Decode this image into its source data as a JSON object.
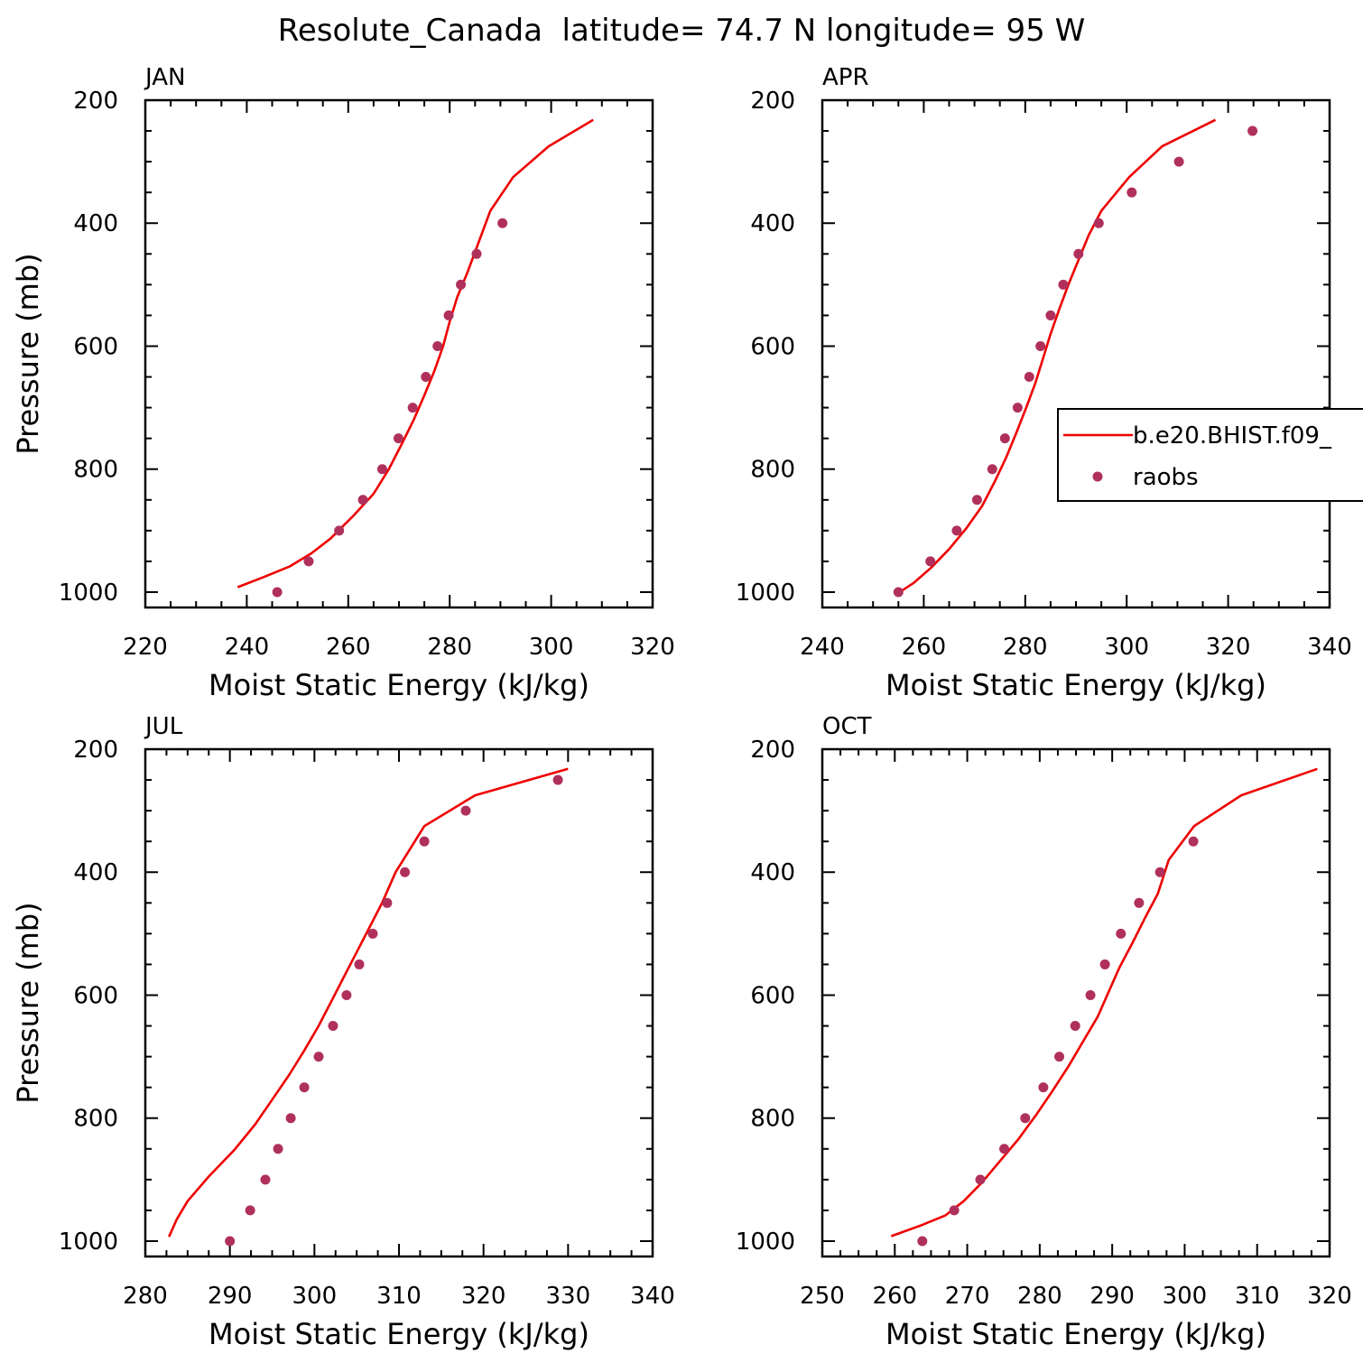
{
  "figure_title": "Resolute_Canada  latitude= 74.7 N longitude= 95 W",
  "legend": {
    "model_label": "b.e20.BHIST.f09_",
    "obs_label": "raobs"
  },
  "colors": {
    "model": "#ee0000",
    "obs": "#b0305c",
    "axes": "#000000"
  },
  "chart_data": [
    {
      "type": "line",
      "panel": "JAN",
      "xlabel": "Moist Static Energy (kJ/kg)",
      "ylabel": "Pressure (mb)",
      "xlim": [
        220,
        320
      ],
      "xticks": [
        220,
        240,
        260,
        280,
        300,
        320
      ],
      "xminor": 5,
      "ylim": [
        1025,
        200
      ],
      "yticks": [
        200,
        400,
        600,
        800,
        1000
      ],
      "yminor": 50,
      "series": [
        {
          "name": "b.e20.BHIST.f09_",
          "style": "line",
          "x": [
            238.2,
            243.5,
            248.5,
            252.7,
            256.5,
            261,
            265,
            268,
            270.5,
            272.9,
            275,
            277,
            278.7,
            280,
            281.5,
            283.5,
            285.3,
            288,
            292.5,
            299.5,
            308.3
          ],
          "y": [
            992,
            975,
            958,
            937,
            913,
            876,
            840,
            800,
            760,
            720,
            680,
            640,
            600,
            560,
            520,
            480,
            440,
            380,
            325,
            275,
            232
          ]
        },
        {
          "name": "raobs",
          "style": "markers",
          "x": [
            246,
            252.2,
            258.2,
            262.9,
            266.7,
            269.9,
            272.7,
            275.3,
            277.6,
            279.8,
            282.2,
            285.3,
            290.4
          ],
          "y": [
            1000,
            950,
            900,
            850,
            800,
            750,
            700,
            650,
            600,
            550,
            500,
            450,
            400
          ]
        }
      ]
    },
    {
      "type": "line",
      "panel": "APR",
      "xlabel": "Moist Static Energy (kJ/kg)",
      "ylabel": "Pressure (mb)",
      "xlim": [
        240,
        340
      ],
      "xticks": [
        240,
        260,
        280,
        300,
        320,
        340
      ],
      "xminor": 5,
      "ylim": [
        1025,
        200
      ],
      "yticks": [
        200,
        400,
        600,
        800,
        1000
      ],
      "yminor": 50,
      "series": [
        {
          "name": "b.e20.BHIST.f09_",
          "style": "line",
          "x": [
            254.9,
            258,
            261.5,
            265,
            268.5,
            271.5,
            274,
            276.3,
            278.3,
            280.2,
            282,
            283.5,
            285,
            286.7,
            288.5,
            290.5,
            292.5,
            295,
            300.5,
            307,
            317.5
          ],
          "y": [
            1002,
            985,
            960,
            930,
            895,
            860,
            820,
            780,
            740,
            700,
            660,
            620,
            580,
            540,
            500,
            460,
            420,
            380,
            325,
            275,
            232
          ]
        },
        {
          "name": "raobs",
          "style": "markers",
          "x": [
            255,
            261.3,
            266.5,
            270.5,
            273.5,
            276,
            278.5,
            280.8,
            283,
            285,
            287.5,
            290.5,
            294.5,
            301,
            310.3,
            324.8
          ],
          "y": [
            1000,
            950,
            900,
            850,
            800,
            750,
            700,
            650,
            600,
            550,
            500,
            450,
            400,
            350,
            300,
            250
          ]
        }
      ]
    },
    {
      "type": "line",
      "panel": "JUL",
      "xlabel": "Moist Static Energy (kJ/kg)",
      "ylabel": "Pressure (mb)",
      "xlim": [
        280,
        340
      ],
      "xticks": [
        280,
        290,
        300,
        310,
        320,
        330,
        340
      ],
      "xminor": 2.5,
      "ylim": [
        1025,
        200
      ],
      "yticks": [
        200,
        400,
        600,
        800,
        1000
      ],
      "yminor": 50,
      "series": [
        {
          "name": "b.e20.BHIST.f09_",
          "style": "line",
          "x": [
            282.8,
            283.7,
            285,
            287.5,
            290.5,
            293,
            295,
            297,
            298.8,
            300.5,
            302,
            303.5,
            305,
            306.5,
            308,
            309.6,
            313,
            319,
            330
          ],
          "y": [
            993,
            965,
            935,
            895,
            852,
            810,
            770,
            730,
            690,
            650,
            610,
            570,
            530,
            490,
            450,
            400,
            325,
            275,
            232
          ]
        },
        {
          "name": "raobs",
          "style": "markers",
          "x": [
            290,
            292.4,
            294.2,
            295.7,
            297.2,
            298.8,
            300.5,
            302.2,
            303.8,
            305.3,
            306.9,
            308.6,
            310.7,
            313,
            317.9,
            328.8
          ],
          "y": [
            1000,
            950,
            900,
            850,
            800,
            750,
            700,
            650,
            600,
            550,
            500,
            450,
            400,
            350,
            300,
            250
          ]
        }
      ]
    },
    {
      "type": "line",
      "panel": "OCT",
      "xlabel": "Moist Static Energy (kJ/kg)",
      "ylabel": "Pressure (mb)",
      "xlim": [
        250,
        320
      ],
      "xticks": [
        250,
        260,
        270,
        280,
        290,
        300,
        310,
        320
      ],
      "xminor": 2.5,
      "ylim": [
        1025,
        200
      ],
      "yticks": [
        200,
        400,
        600,
        800,
        1000
      ],
      "yminor": 50,
      "series": [
        {
          "name": "b.e20.BHIST.f09_",
          "style": "line",
          "x": [
            259.5,
            263.5,
            267,
            269.5,
            272,
            274.5,
            277,
            279.5,
            281.8,
            284,
            286,
            288,
            289.5,
            291,
            292.8,
            294.5,
            296.3,
            297.8,
            301.3,
            307.8,
            318.3
          ],
          "y": [
            992,
            975,
            958,
            935,
            905,
            870,
            835,
            795,
            755,
            715,
            675,
            635,
            595,
            555,
            515,
            475,
            435,
            380,
            325,
            275,
            232
          ]
        },
        {
          "name": "raobs",
          "style": "markers",
          "x": [
            263.8,
            268.2,
            271.8,
            275.1,
            278,
            280.5,
            282.7,
            284.9,
            287,
            289,
            291.2,
            293.7,
            296.6,
            301.2
          ],
          "y": [
            1000,
            950,
            900,
            850,
            800,
            750,
            700,
            650,
            600,
            550,
            500,
            450,
            400,
            350
          ]
        }
      ]
    }
  ]
}
